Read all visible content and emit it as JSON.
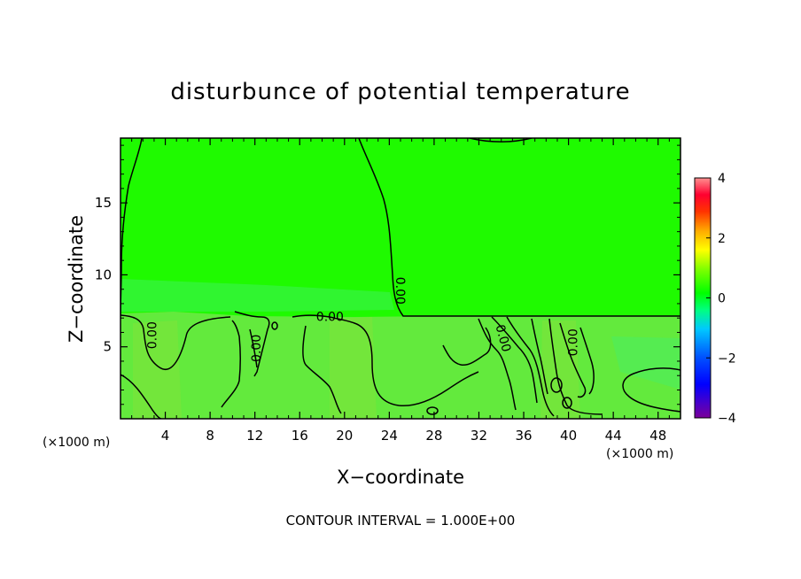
{
  "chart_data": {
    "type": "heatmap",
    "title": "disturbunce of potential temperature",
    "xlabel": "X−coordinate",
    "ylabel": "Z−coordinate",
    "x_unit_left": "(×1000 m)",
    "x_unit_right": "(×1000 m)",
    "xlim": [
      0,
      50
    ],
    "ylim": [
      0,
      19.5
    ],
    "x_ticks": [
      {
        "value": 4,
        "label": "4"
      },
      {
        "value": 8,
        "label": "8"
      },
      {
        "value": 12,
        "label": "12"
      },
      {
        "value": 16,
        "label": "16"
      },
      {
        "value": 20,
        "label": "20"
      },
      {
        "value": 24,
        "label": "24"
      },
      {
        "value": 28,
        "label": "28"
      },
      {
        "value": 32,
        "label": "32"
      },
      {
        "value": 36,
        "label": "36"
      },
      {
        "value": 40,
        "label": "40"
      },
      {
        "value": 44,
        "label": "44"
      },
      {
        "value": 48,
        "label": "48"
      }
    ],
    "y_ticks": [
      {
        "value": 5,
        "label": "5"
      },
      {
        "value": 10,
        "label": "10"
      },
      {
        "value": 15,
        "label": "15"
      }
    ],
    "colorbar": {
      "min": -4,
      "max": 4,
      "ticks": [
        {
          "value": 4,
          "label": "4"
        },
        {
          "value": 2,
          "label": "2"
        },
        {
          "value": 0,
          "label": "0"
        },
        {
          "value": -2,
          "label": "−2"
        },
        {
          "value": -4,
          "label": "−4"
        }
      ]
    },
    "contour_labels": [
      {
        "text": "0.00",
        "x": 2.8,
        "y": 5.8,
        "rotate": -90
      },
      {
        "text": "0.00",
        "x": 12.1,
        "y": 4.9,
        "rotate": -90
      },
      {
        "text": "0.00",
        "x": 18.7,
        "y": 7.1,
        "rotate": 0
      },
      {
        "text": "0.00",
        "x": 25.0,
        "y": 8.9,
        "rotate": 90
      },
      {
        "text": "0.00",
        "x": 34.2,
        "y": 5.6,
        "rotate": 75
      },
      {
        "text": "0.00",
        "x": 40.4,
        "y": 5.3,
        "rotate": -90
      }
    ],
    "contour_level": 0.0,
    "contour_interval_text": "CONTOUR INTERVAL = 1.000E+00",
    "colors": {
      "upper_region": "#1ffa00",
      "lower_region": "#63ea3d",
      "warm_streak": "#7ee23a",
      "cool_patch": "#45f06a"
    }
  }
}
